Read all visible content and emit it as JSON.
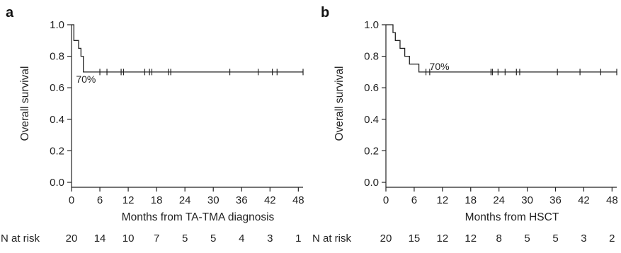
{
  "chart_data": [
    {
      "type": "line",
      "panel_label": "a",
      "xlabel": "Months from TA-TMA diagnosis",
      "ylabel": "Overall survival",
      "xlim": [
        0,
        49
      ],
      "ylim": [
        0,
        1.0
      ],
      "x_ticks": [
        0,
        6,
        12,
        18,
        24,
        30,
        36,
        42,
        48
      ],
      "y_ticks": [
        "0.0",
        "0.2",
        "0.4",
        "0.6",
        "0.8",
        "1.0"
      ],
      "annotation": {
        "text": "70%",
        "x": 0.5,
        "y": 0.655
      },
      "series": [
        {
          "steps": [
            [
              0,
              1.0
            ],
            [
              0.5,
              0.9
            ],
            [
              1.5,
              0.85
            ],
            [
              2.0,
              0.8
            ],
            [
              2.5,
              0.7
            ],
            [
              49,
              0.7
            ]
          ],
          "censored": [
            6,
            7.5,
            10.5,
            11,
            15.5,
            16.5,
            17,
            20.5,
            21,
            33.5,
            39.5,
            42.5,
            43.5,
            49
          ]
        }
      ],
      "risk_table": {
        "label": "N at risk",
        "values": [
          "20",
          "14",
          "10",
          "7",
          "5",
          "5",
          "4",
          "3",
          "1"
        ]
      }
    },
    {
      "type": "line",
      "panel_label": "b",
      "xlabel": "Months from HSCT",
      "ylabel": "Overall survival",
      "xlim": [
        0,
        49
      ],
      "ylim": [
        0,
        1.0
      ],
      "x_ticks": [
        0,
        6,
        12,
        18,
        24,
        30,
        36,
        42,
        48
      ],
      "y_ticks": [
        "0.0",
        "0.2",
        "0.4",
        "0.6",
        "0.8",
        "1.0"
      ],
      "annotation": {
        "text": "70%",
        "x": 8.8,
        "y": 0.735
      },
      "series": [
        {
          "steps": [
            [
              0,
              1.0
            ],
            [
              1.5,
              0.95
            ],
            [
              2.0,
              0.9
            ],
            [
              3.0,
              0.85
            ],
            [
              4.0,
              0.8
            ],
            [
              5.0,
              0.75
            ],
            [
              7.0,
              0.7
            ],
            [
              49,
              0.7
            ]
          ],
          "censored": [
            8.5,
            9.3,
            22.3,
            22.6,
            23.8,
            25.3,
            27.7,
            28.4,
            36.4,
            41.2,
            45.6,
            49
          ]
        }
      ],
      "risk_table": {
        "label": "N at risk",
        "values": [
          "20",
          "15",
          "12",
          "12",
          "8",
          "5",
          "5",
          "3",
          "2"
        ]
      }
    }
  ]
}
